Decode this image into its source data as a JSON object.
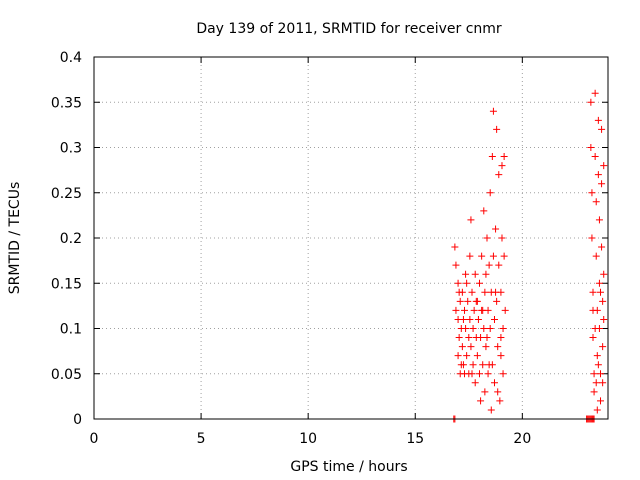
{
  "chart_data": {
    "type": "scatter",
    "title": "Day 139 of 2011, SRMTID for receiver cnmr",
    "xlabel": "GPS time / hours",
    "ylabel": "SRMTID / TECUs",
    "xlim": [
      0,
      24
    ],
    "ylim": [
      0,
      0.4
    ],
    "xticks": [
      0,
      5,
      10,
      15,
      20
    ],
    "yticks": [
      0,
      0.05,
      0.1,
      0.15,
      0.2,
      0.25,
      0.3,
      0.35,
      0.4
    ],
    "xtick_labels": [
      "0",
      "5",
      "10",
      "15",
      "20"
    ],
    "ytick_labels": [
      "0",
      "0.05",
      "0.1",
      "0.15",
      "0.2",
      "0.25",
      "0.3",
      "0.35",
      "0.4"
    ],
    "grid": true,
    "marker": "plus",
    "color": "#ff0000",
    "points": [
      [
        16.8,
        0.0
      ],
      [
        16.85,
        0.0
      ],
      [
        16.85,
        0.19
      ],
      [
        16.9,
        0.17
      ],
      [
        16.9,
        0.12
      ],
      [
        17.0,
        0.15
      ],
      [
        17.0,
        0.11
      ],
      [
        17.05,
        0.09
      ],
      [
        17.0,
        0.07
      ],
      [
        17.1,
        0.05
      ],
      [
        17.1,
        0.13
      ],
      [
        17.15,
        0.1
      ],
      [
        17.2,
        0.14
      ],
      [
        17.2,
        0.08
      ],
      [
        17.25,
        0.06
      ],
      [
        17.3,
        0.12
      ],
      [
        17.3,
        0.05
      ],
      [
        17.35,
        0.16
      ],
      [
        17.35,
        0.1
      ],
      [
        17.4,
        0.07
      ],
      [
        17.45,
        0.13
      ],
      [
        17.5,
        0.09
      ],
      [
        17.5,
        0.05
      ],
      [
        17.55,
        0.11
      ],
      [
        17.55,
        0.18
      ],
      [
        17.6,
        0.22
      ],
      [
        17.6,
        0.08
      ],
      [
        17.65,
        0.14
      ],
      [
        17.7,
        0.1
      ],
      [
        17.7,
        0.06
      ],
      [
        17.75,
        0.12
      ],
      [
        17.8,
        0.16
      ],
      [
        17.8,
        0.04
      ],
      [
        17.85,
        0.09
      ],
      [
        17.9,
        0.13
      ],
      [
        17.9,
        0.07
      ],
      [
        17.95,
        0.11
      ],
      [
        18.0,
        0.15
      ],
      [
        18.0,
        0.05
      ],
      [
        18.05,
        0.02
      ],
      [
        18.05,
        0.09
      ],
      [
        18.1,
        0.12
      ],
      [
        18.1,
        0.18
      ],
      [
        18.15,
        0.06
      ],
      [
        18.2,
        0.23
      ],
      [
        18.2,
        0.1
      ],
      [
        18.25,
        0.14
      ],
      [
        18.25,
        0.03
      ],
      [
        18.3,
        0.16
      ],
      [
        18.3,
        0.08
      ],
      [
        18.35,
        0.2
      ],
      [
        18.4,
        0.12
      ],
      [
        18.4,
        0.05
      ],
      [
        18.45,
        0.17
      ],
      [
        18.5,
        0.25
      ],
      [
        18.5,
        0.1
      ],
      [
        18.55,
        0.01
      ],
      [
        18.55,
        0.14
      ],
      [
        18.6,
        0.29
      ],
      [
        18.6,
        0.06
      ],
      [
        18.65,
        0.34
      ],
      [
        18.65,
        0.18
      ],
      [
        18.7,
        0.11
      ],
      [
        18.7,
        0.04
      ],
      [
        18.75,
        0.21
      ],
      [
        18.8,
        0.32
      ],
      [
        18.8,
        0.13
      ],
      [
        18.85,
        0.08
      ],
      [
        18.9,
        0.27
      ],
      [
        18.9,
        0.17
      ],
      [
        18.95,
        0.02
      ],
      [
        19.0,
        0.14
      ],
      [
        19.0,
        0.07
      ],
      [
        19.05,
        0.2
      ],
      [
        19.05,
        0.28
      ],
      [
        19.1,
        0.1
      ],
      [
        19.1,
        0.05
      ],
      [
        19.15,
        0.29
      ],
      [
        19.15,
        0.18
      ],
      [
        19.2,
        0.12
      ],
      [
        17.05,
        0.14
      ],
      [
        17.15,
        0.06
      ],
      [
        17.25,
        0.11
      ],
      [
        17.4,
        0.15
      ],
      [
        17.65,
        0.05
      ],
      [
        17.85,
        0.13
      ],
      [
        18.15,
        0.12
      ],
      [
        18.35,
        0.09
      ],
      [
        18.45,
        0.06
      ],
      [
        18.75,
        0.14
      ],
      [
        18.85,
        0.03
      ],
      [
        19.0,
        0.09
      ],
      [
        23.0,
        0.0
      ],
      [
        23.05,
        0.0
      ],
      [
        23.1,
        0.0
      ],
      [
        23.15,
        0.0
      ],
      [
        23.2,
        0.0
      ],
      [
        23.25,
        0.0
      ],
      [
        23.3,
        0.0
      ],
      [
        23.35,
        0.0
      ],
      [
        23.2,
        0.35
      ],
      [
        23.2,
        0.3
      ],
      [
        23.25,
        0.25
      ],
      [
        23.25,
        0.2
      ],
      [
        23.3,
        0.14
      ],
      [
        23.3,
        0.09
      ],
      [
        23.35,
        0.05
      ],
      [
        23.35,
        0.03
      ],
      [
        23.4,
        0.36
      ],
      [
        23.4,
        0.29
      ],
      [
        23.45,
        0.24
      ],
      [
        23.45,
        0.18
      ],
      [
        23.5,
        0.12
      ],
      [
        23.5,
        0.07
      ],
      [
        23.5,
        0.01
      ],
      [
        23.55,
        0.33
      ],
      [
        23.55,
        0.27
      ],
      [
        23.6,
        0.22
      ],
      [
        23.6,
        0.15
      ],
      [
        23.6,
        0.1
      ],
      [
        23.65,
        0.05
      ],
      [
        23.65,
        0.02
      ],
      [
        23.7,
        0.32
      ],
      [
        23.7,
        0.26
      ],
      [
        23.7,
        0.19
      ],
      [
        23.75,
        0.13
      ],
      [
        23.75,
        0.08
      ],
      [
        23.75,
        0.04
      ],
      [
        23.8,
        0.28
      ],
      [
        23.8,
        0.16
      ],
      [
        23.8,
        0.11
      ],
      [
        23.3,
        0.12
      ],
      [
        23.4,
        0.1
      ],
      [
        23.55,
        0.06
      ],
      [
        23.65,
        0.14
      ],
      [
        23.45,
        0.04
      ]
    ]
  }
}
